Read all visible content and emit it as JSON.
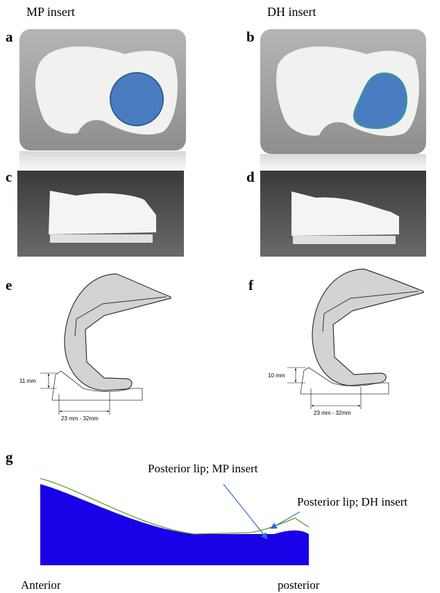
{
  "columns": [
    {
      "title": "MP insert"
    },
    {
      "title": "DH insert"
    }
  ],
  "panel_labels": [
    "a",
    "b",
    "c",
    "d",
    "e",
    "f",
    "g"
  ],
  "diagrams": [
    {
      "height_label": "11 mm",
      "width_label": "23 mm - 32mm"
    },
    {
      "height_label": "10 mm",
      "width_label": "23 mm - 32mm"
    }
  ],
  "profile": {
    "annotations": [
      "Posterior lip; MP insert",
      "Posterior lip; DH insert"
    ],
    "anterior_label": "Anterior",
    "posterior_label": "posterior"
  }
}
